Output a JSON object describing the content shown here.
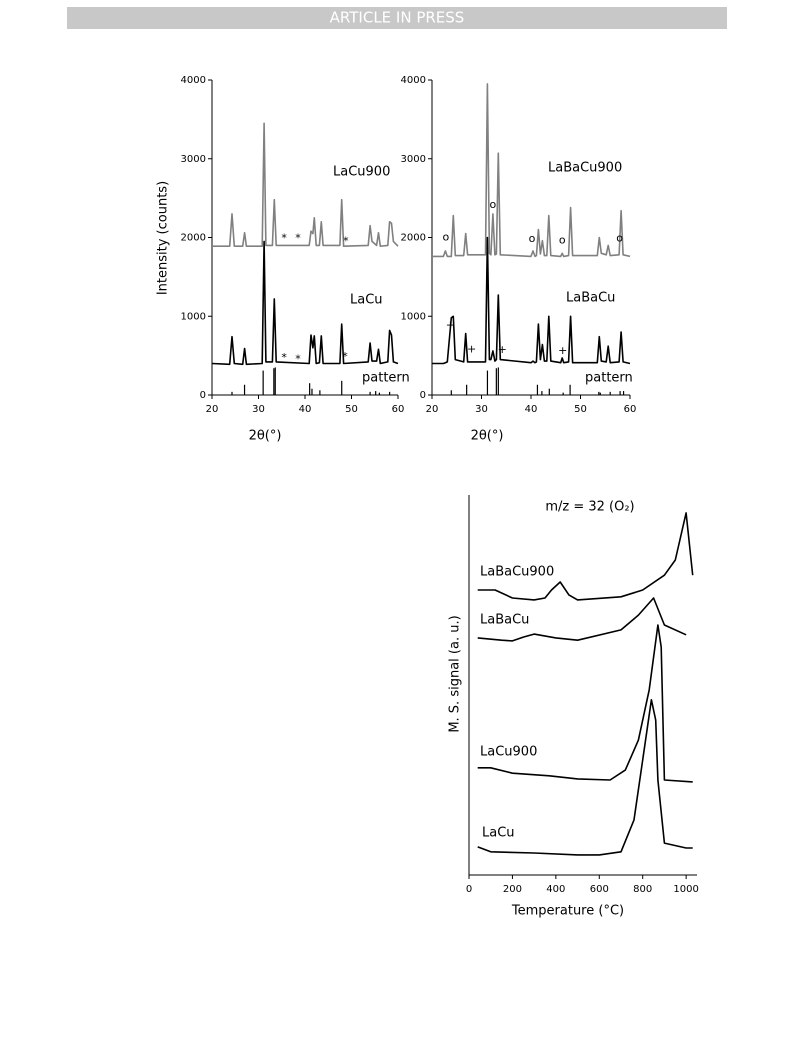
{
  "header": "ARTICLE IN PRESS",
  "chart_data": [
    {
      "type": "line",
      "x_label": "2θ(°)",
      "y_label": "Intensity (counts)",
      "xlim": [
        20,
        60
      ],
      "ylim": [
        0,
        4000
      ],
      "xticks": [
        20,
        30,
        40,
        50,
        60
      ],
      "yticks": [
        0,
        1000,
        2000,
        3000,
        4000
      ],
      "series": [
        {
          "name": "LaCu900",
          "color": "#808080",
          "x": [
            20,
            23.8,
            24.3,
            24.8,
            26.6,
            27,
            27.4,
            30.8,
            31.2,
            31.6,
            33,
            33.4,
            33.8,
            40.9,
            41.3,
            41.7,
            42,
            42.4,
            43.1,
            43.5,
            43.9,
            47.5,
            47.9,
            48.3,
            53.6,
            54,
            54.4,
            55.4,
            55.8,
            56.2,
            57.8,
            58.2,
            58.6,
            59,
            60
          ],
          "values": [
            1890,
            1890,
            2300,
            1890,
            1890,
            2060,
            1890,
            1890,
            3450,
            1900,
            1900,
            2480,
            1900,
            1900,
            2080,
            2050,
            2250,
            1900,
            1900,
            2200,
            1900,
            1900,
            2480,
            1890,
            1900,
            2150,
            1950,
            1900,
            2060,
            1890,
            1900,
            2200,
            2180,
            1950,
            1890
          ]
        },
        {
          "name": "LaCu",
          "color": "#000000",
          "x": [
            20,
            23.8,
            24.3,
            24.8,
            26.6,
            27,
            27.4,
            30.8,
            31.2,
            31.6,
            33,
            33.4,
            33.8,
            40.9,
            41.3,
            41.7,
            42,
            42.4,
            43.1,
            43.5,
            43.9,
            47.5,
            47.9,
            48.3,
            53.6,
            54,
            54.4,
            55.4,
            55.8,
            56.2,
            57.8,
            58.2,
            58.6,
            59,
            60
          ],
          "values": [
            400,
            390,
            740,
            400,
            390,
            590,
            390,
            400,
            1950,
            420,
            420,
            1220,
            420,
            400,
            760,
            600,
            750,
            400,
            410,
            750,
            400,
            400,
            900,
            400,
            420,
            660,
            430,
            430,
            580,
            400,
            420,
            820,
            760,
            420,
            400
          ]
        }
      ],
      "pattern": {
        "name": "pattern",
        "color": "#000000",
        "x": [
          24.3,
          27,
          31,
          33.3,
          33.6,
          41,
          41.5,
          43.2,
          47.9,
          54,
          55.2,
          56,
          58.2
        ],
        "values": [
          40,
          130,
          310,
          340,
          350,
          150,
          80,
          60,
          180,
          40,
          50,
          30,
          40
        ]
      },
      "annotations": [
        {
          "text": "*",
          "x": 35.5,
          "y": 1990
        },
        {
          "text": "*",
          "x": 38.5,
          "y": 1990
        },
        {
          "text": "*",
          "x": 48.8,
          "y": 1950
        },
        {
          "text": "*",
          "x": 35.5,
          "y": 470
        },
        {
          "text": "*",
          "x": 38.5,
          "y": 450
        },
        {
          "text": "*",
          "x": 48.6,
          "y": 480
        }
      ]
    },
    {
      "type": "line",
      "x_label": "2θ(°)",
      "xlim": [
        20,
        60
      ],
      "ylim": [
        0,
        4000
      ],
      "xticks": [
        20,
        30,
        40,
        50,
        60
      ],
      "yticks": [
        0,
        1000,
        2000,
        3000,
        4000
      ],
      "series": [
        {
          "name": "LaBaCu900",
          "color": "#808080",
          "x": [
            20,
            22.3,
            22.7,
            23.1,
            23.9,
            24.3,
            24.7,
            26.4,
            26.8,
            27.2,
            30.8,
            31.2,
            31.6,
            31.9,
            32.3,
            32.7,
            33,
            33.4,
            33.8,
            40,
            40.4,
            40.8,
            41.1,
            41.5,
            41.9,
            42.3,
            42.7,
            43.2,
            43.6,
            44,
            46,
            46.3,
            46.6,
            47.6,
            48,
            48.4,
            53.4,
            53.8,
            54.2,
            55.2,
            55.6,
            56,
            57.8,
            58.2,
            58.6,
            60
          ],
          "values": [
            1760,
            1760,
            1830,
            1760,
            1760,
            2280,
            1770,
            1770,
            2050,
            1780,
            1780,
            3950,
            1800,
            1780,
            2300,
            1780,
            1790,
            3070,
            1780,
            1760,
            1830,
            1760,
            1770,
            2100,
            1790,
            1960,
            1770,
            1770,
            2280,
            1770,
            1760,
            1800,
            1760,
            1770,
            2380,
            1770,
            1770,
            2000,
            1800,
            1780,
            1900,
            1770,
            1780,
            2340,
            1780,
            1760
          ]
        },
        {
          "name": "LaBaCu",
          "color": "#000000",
          "x": [
            20,
            22.3,
            22.7,
            23.1,
            23.9,
            24.3,
            24.7,
            26.4,
            26.8,
            27.2,
            30.8,
            31.2,
            31.6,
            31.9,
            32.3,
            32.7,
            33,
            33.4,
            33.8,
            40,
            40.4,
            40.8,
            41.1,
            41.5,
            41.9,
            42.3,
            42.7,
            43.2,
            43.6,
            44,
            46,
            46.3,
            46.6,
            47.6,
            48,
            48.4,
            53.4,
            53.8,
            54.2,
            55.2,
            55.6,
            56,
            57.8,
            58.2,
            58.6,
            60
          ],
          "values": [
            400,
            400,
            410,
            420,
            980,
            1000,
            450,
            420,
            780,
            420,
            420,
            2000,
            450,
            450,
            560,
            430,
            450,
            1270,
            450,
            410,
            430,
            410,
            420,
            900,
            450,
            640,
            430,
            430,
            1000,
            430,
            410,
            470,
            410,
            420,
            1000,
            410,
            410,
            740,
            430,
            420,
            620,
            410,
            420,
            800,
            420,
            400
          ]
        }
      ],
      "pattern": {
        "name": "pattern",
        "color": "#000000",
        "x": [
          23.9,
          27,
          31.2,
          33,
          33.4,
          41.3,
          42.2,
          43.7,
          46.5,
          47.9,
          53.7,
          54,
          56,
          58,
          58.7
        ],
        "values": [
          60,
          130,
          310,
          340,
          350,
          130,
          50,
          80,
          30,
          130,
          40,
          30,
          40,
          50,
          50
        ]
      },
      "annotations": [
        {
          "text": "o",
          "x": 22.8,
          "y": 2000
        },
        {
          "text": "o",
          "x": 32.3,
          "y": 2410
        },
        {
          "text": "o",
          "x": 40.2,
          "y": 1980
        },
        {
          "text": "o",
          "x": 46.3,
          "y": 1960
        },
        {
          "text": "o",
          "x": 57.9,
          "y": 1990
        },
        {
          "text": "+",
          "x": 23.7,
          "y": 880
        },
        {
          "text": "+",
          "x": 28,
          "y": 580
        },
        {
          "text": "+",
          "x": 34.2,
          "y": 570
        },
        {
          "text": "+",
          "x": 46.4,
          "y": 560
        }
      ]
    },
    {
      "type": "line",
      "title": "m/z = 32 (O₂)",
      "x_label": "Temperature (°C)",
      "y_label": "M. S. signal (a. u.)",
      "xlim": [
        0,
        1050
      ],
      "ylim": [
        0,
        100
      ],
      "xticks": [
        0,
        200,
        400,
        600,
        800,
        1000
      ],
      "series": [
        {
          "name": "LaBaCu900",
          "color": "#000000",
          "x": [
            40,
            120,
            200,
            300,
            350,
            380,
            420,
            460,
            500,
            700,
            800,
            900,
            950,
            1000,
            1030
          ],
          "values": [
            75,
            75,
            72.9,
            72.4,
            72.9,
            75,
            77.1,
            73.7,
            72.4,
            73.2,
            75,
            78.9,
            82.9,
            95.3,
            78.9
          ]
        },
        {
          "name": "LaBaCu",
          "color": "#000000",
          "x": [
            40,
            150,
            200,
            250,
            300,
            400,
            500,
            700,
            780,
            850,
            900,
            1000
          ],
          "values": [
            62.4,
            61.8,
            61.6,
            62.6,
            63.4,
            62.4,
            61.8,
            64.5,
            68.4,
            72.9,
            65.8,
            63.2
          ]
        },
        {
          "name": "LaCu900",
          "color": "#000000",
          "x": [
            40,
            100,
            200,
            370,
            500,
            650,
            720,
            780,
            830,
            870,
            885,
            900,
            1030
          ],
          "values": [
            28.2,
            28.2,
            26.8,
            26.1,
            25.3,
            25,
            27.6,
            35.5,
            48.7,
            65.8,
            60,
            25,
            24.5
          ]
        },
        {
          "name": "LaCu",
          "color": "#000000",
          "x": [
            40,
            100,
            300,
            500,
            600,
            700,
            760,
            800,
            840,
            860,
            870,
            900,
            1000,
            1030
          ],
          "values": [
            7.4,
            6.1,
            5.8,
            5.3,
            5.3,
            6.1,
            14.5,
            30.3,
            46.1,
            40.8,
            25,
            8.4,
            7.1,
            7.1
          ]
        }
      ]
    }
  ]
}
